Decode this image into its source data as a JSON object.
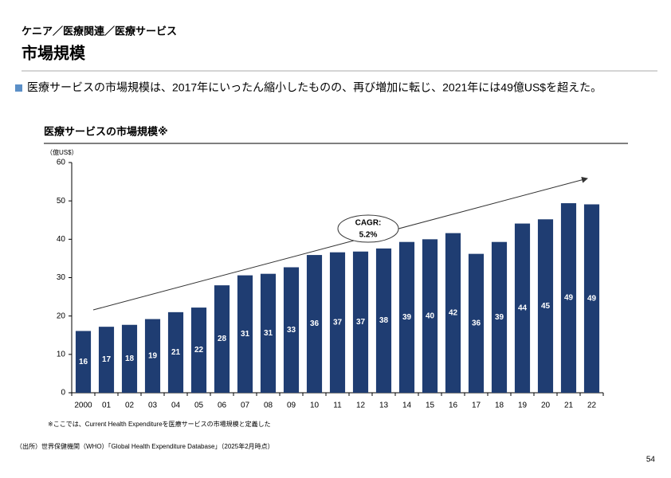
{
  "header": {
    "breadcrumb": "ケニア／医療関連／医療サービス",
    "title": "市場規模"
  },
  "bullet": "医療サービスの市場規模は、2017年にいったん縮小したものの、再び増加に転じ、2021年には49億US$を超えた。",
  "chart_data": {
    "type": "bar",
    "title": "医療サービスの市場規模※",
    "unit_label": "（億US$）",
    "categories": [
      "2000",
      "01",
      "02",
      "03",
      "04",
      "05",
      "06",
      "07",
      "08",
      "09",
      "10",
      "11",
      "12",
      "13",
      "14",
      "15",
      "16",
      "17",
      "18",
      "19",
      "20",
      "21",
      "22"
    ],
    "values": [
      16.1,
      17.2,
      17.7,
      19.2,
      21.0,
      22.2,
      28.0,
      30.6,
      31.0,
      32.7,
      35.9,
      36.6,
      36.8,
      37.6,
      39.3,
      40.0,
      41.6,
      36.2,
      39.3,
      44.1,
      45.2,
      49.4,
      49.1
    ],
    "value_labels": [
      "16",
      "17",
      "18",
      "19",
      "21",
      "22",
      "28",
      "31",
      "31",
      "33",
      "36",
      "37",
      "37",
      "38",
      "39",
      "40",
      "42",
      "36",
      "39",
      "44",
      "45",
      "49",
      "49"
    ],
    "color": "#1f3d72",
    "ylim": [
      0,
      60
    ],
    "yticks": [
      0,
      10,
      20,
      30,
      40,
      50,
      60
    ],
    "annotation": [
      "CAGR:",
      "5.2%"
    ]
  },
  "footnote": "※ここでは、Current Health Expenditureを医療サービスの市場規模と定義した",
  "source": "（出所）世界保健機関（WHO）「Global Health Expenditure Database」（2025年2月時点）",
  "page_number": "54"
}
